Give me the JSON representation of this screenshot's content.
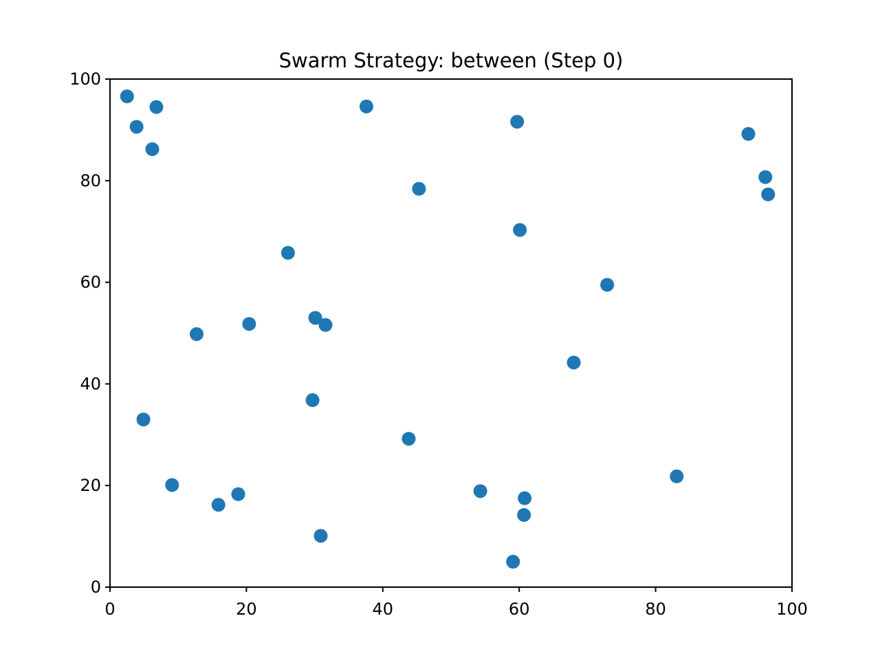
{
  "chart_data": {
    "type": "scatter",
    "title": "Swarm Strategy: between (Step 0)",
    "xlabel": "",
    "ylabel": "",
    "xlim": [
      0,
      100
    ],
    "ylim": [
      0,
      100
    ],
    "x_ticks": [
      "0",
      "20",
      "40",
      "60",
      "80",
      "100"
    ],
    "y_ticks": [
      "0",
      "20",
      "40",
      "60",
      "80",
      "100"
    ],
    "grid": false,
    "point_color": "#1f77b4",
    "series": [
      {
        "points": [
          {
            "x": 2.5,
            "y": 96.6
          },
          {
            "x": 6.8,
            "y": 94.5
          },
          {
            "x": 3.9,
            "y": 90.6
          },
          {
            "x": 6.2,
            "y": 86.2
          },
          {
            "x": 37.6,
            "y": 94.6
          },
          {
            "x": 59.7,
            "y": 91.6
          },
          {
            "x": 93.6,
            "y": 89.2
          },
          {
            "x": 96.1,
            "y": 80.7
          },
          {
            "x": 96.5,
            "y": 77.3
          },
          {
            "x": 45.3,
            "y": 78.4
          },
          {
            "x": 60.1,
            "y": 70.3
          },
          {
            "x": 26.1,
            "y": 65.8
          },
          {
            "x": 72.9,
            "y": 59.5
          },
          {
            "x": 12.7,
            "y": 49.8
          },
          {
            "x": 20.4,
            "y": 51.8
          },
          {
            "x": 30.1,
            "y": 53.0
          },
          {
            "x": 31.6,
            "y": 51.6
          },
          {
            "x": 68.0,
            "y": 44.2
          },
          {
            "x": 29.7,
            "y": 36.8
          },
          {
            "x": 4.9,
            "y": 33.0
          },
          {
            "x": 43.8,
            "y": 29.2
          },
          {
            "x": 9.1,
            "y": 20.1
          },
          {
            "x": 15.9,
            "y": 16.2
          },
          {
            "x": 18.8,
            "y": 18.3
          },
          {
            "x": 54.3,
            "y": 18.9
          },
          {
            "x": 60.8,
            "y": 17.5
          },
          {
            "x": 60.7,
            "y": 14.2
          },
          {
            "x": 83.1,
            "y": 21.8
          },
          {
            "x": 30.9,
            "y": 10.1
          },
          {
            "x": 59.1,
            "y": 5.0
          }
        ]
      }
    ]
  }
}
